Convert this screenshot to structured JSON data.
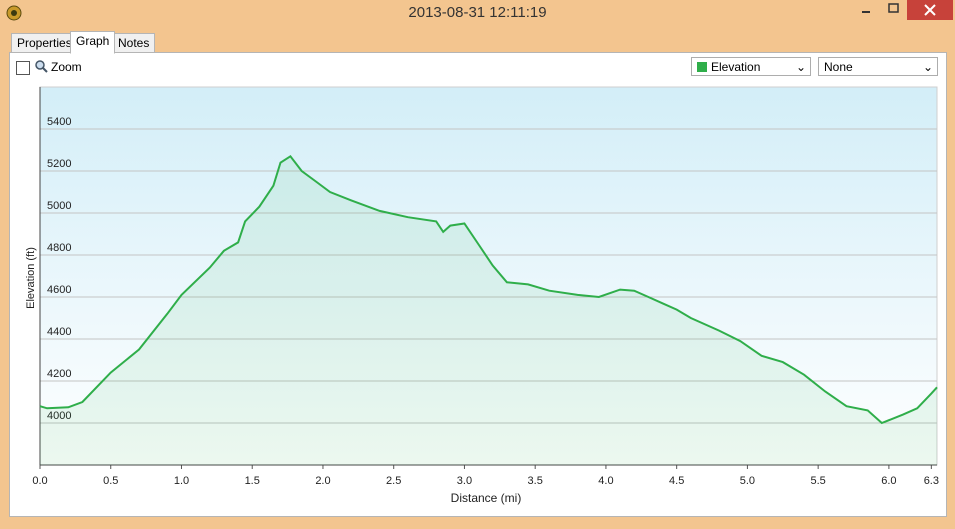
{
  "window": {
    "title": "2013-08-31 12:11:19"
  },
  "tabs": [
    "Properties",
    "Graph",
    "Notes"
  ],
  "zoom_label": "Zoom",
  "secondary_dropdown": "None",
  "chart_data": {
    "type": "line",
    "xlabel": "Distance  (mi)",
    "ylabel": "Elevation (ft)",
    "x": [
      0,
      0.05,
      0.2,
      0.3,
      0.5,
      0.7,
      0.9,
      1.0,
      1.2,
      1.3,
      1.4,
      1.45,
      1.55,
      1.65,
      1.7,
      1.77,
      1.85,
      1.95,
      2.05,
      2.2,
      2.4,
      2.6,
      2.8,
      2.85,
      2.9,
      3.0,
      3.1,
      3.2,
      3.3,
      3.45,
      3.6,
      3.8,
      3.95,
      4.1,
      4.2,
      4.3,
      4.4,
      4.5,
      4.6,
      4.8,
      4.95,
      5.1,
      5.25,
      5.4,
      5.55,
      5.7,
      5.85,
      5.95,
      6.1,
      6.2,
      6.3,
      6.34
    ],
    "series": [
      {
        "name": "Elevation",
        "color": "#2fae4a",
        "values": [
          4080,
          4070,
          4075,
          4100,
          4240,
          4350,
          4520,
          4610,
          4740,
          4820,
          4860,
          4960,
          5030,
          5130,
          5240,
          5270,
          5200,
          5150,
          5100,
          5060,
          5010,
          4980,
          4960,
          4910,
          4940,
          4950,
          4850,
          4750,
          4670,
          4660,
          4630,
          4610,
          4600,
          4635,
          4630,
          4600,
          4570,
          4540,
          4500,
          4440,
          4390,
          4320,
          4290,
          4230,
          4150,
          4080,
          4060,
          4000,
          4040,
          4070,
          4140,
          4170
        ]
      }
    ],
    "xlim": [
      0,
      6.34
    ],
    "xticks": [
      {
        "value": 0,
        "label": "0.0"
      },
      {
        "value": 0.5,
        "label": "0.5"
      },
      {
        "value": 1,
        "label": "1.0"
      },
      {
        "value": 1.5,
        "label": "1.5"
      },
      {
        "value": 2,
        "label": "2.0"
      },
      {
        "value": 2.5,
        "label": "2.5"
      },
      {
        "value": 3,
        "label": "3.0"
      },
      {
        "value": 3.5,
        "label": "3.5"
      },
      {
        "value": 4,
        "label": "4.0"
      },
      {
        "value": 4.5,
        "label": "4.5"
      },
      {
        "value": 5,
        "label": "5.0"
      },
      {
        "value": 5.5,
        "label": "5.5"
      },
      {
        "value": 6,
        "label": "6.0"
      },
      6.3
    ],
    "ylim": [
      3800,
      5600
    ],
    "yticks": [
      4000,
      4200,
      4400,
      4600,
      4800,
      5000,
      5200,
      5400
    ],
    "grid": true
  }
}
